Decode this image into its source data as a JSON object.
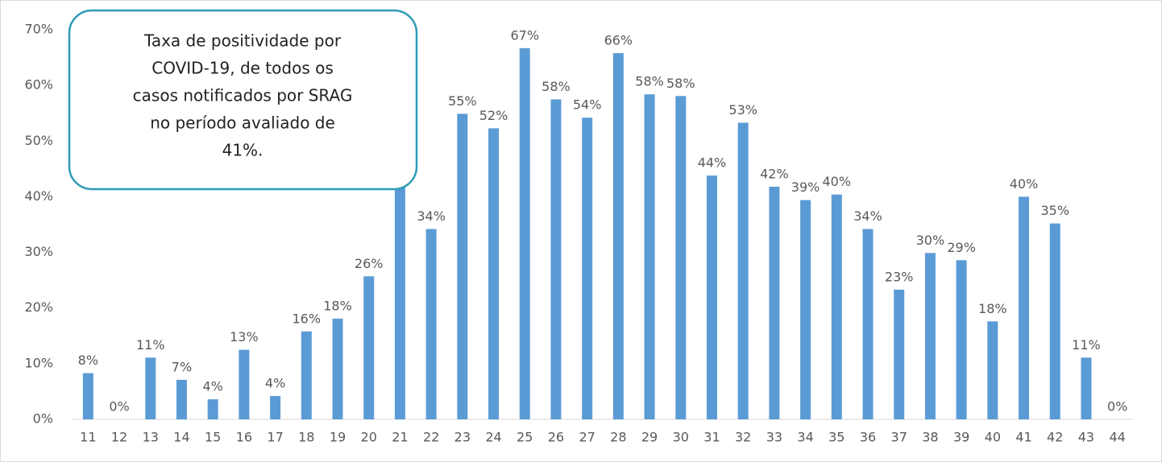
{
  "chart_data": {
    "type": "bar",
    "categories": [
      "11",
      "12",
      "13",
      "14",
      "15",
      "16",
      "17",
      "18",
      "19",
      "20",
      "21",
      "22",
      "23",
      "24",
      "25",
      "26",
      "27",
      "28",
      "29",
      "30",
      "31",
      "32",
      "33",
      "34",
      "35",
      "36",
      "37",
      "38",
      "39",
      "40",
      "41",
      "42",
      "43",
      "44"
    ],
    "values": [
      8.3,
      0,
      11.1,
      7.1,
      3.6,
      12.5,
      4.2,
      15.8,
      18.1,
      25.7,
      41.8,
      34.2,
      54.9,
      52.3,
      66.7,
      57.5,
      54.2,
      65.8,
      58.4,
      58.1,
      43.8,
      53.3,
      41.8,
      39.4,
      40.4,
      34.2,
      23.3,
      29.9,
      28.6,
      17.6,
      40.0,
      35.2,
      11.1,
      0
    ],
    "value_labels": [
      "8%",
      "0%",
      "11%",
      "7%",
      "4%",
      "13%",
      "4%",
      "16%",
      "18%",
      "26%",
      null,
      "34%",
      "55%",
      "52%",
      "67%",
      "58%",
      "54%",
      "66%",
      "58%",
      "58%",
      "44%",
      "53%",
      "42%",
      "39%",
      "40%",
      "34%",
      "23%",
      "30%",
      "29%",
      "18%",
      "40%",
      "35%",
      "11%",
      "0%"
    ],
    "color": "#5b9bd5",
    "ylim": [
      0,
      70
    ],
    "yticks": [
      {
        "value": 0,
        "label": "0%"
      },
      {
        "value": 10,
        "label": "10%"
      },
      {
        "value": 20,
        "label": "20%"
      },
      {
        "value": 30,
        "label": "30%"
      },
      {
        "value": 40,
        "label": "40%"
      },
      {
        "value": 50,
        "label": "50%"
      },
      {
        "value": 60,
        "label": "60%"
      },
      {
        "value": 70,
        "label": "70%"
      }
    ],
    "grid": false,
    "annotation": [
      "Taxa de positividade por",
      "COVID-19, de todos os",
      "casos notificados por SRAG",
      "no período avaliado de",
      "41%."
    ]
  }
}
